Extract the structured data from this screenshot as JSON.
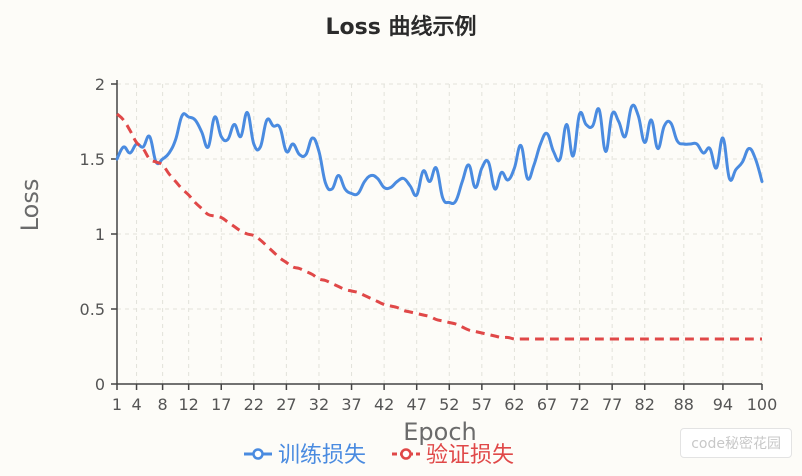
{
  "chart_data": {
    "type": "line",
    "title": "Loss 曲线示例",
    "xlabel": "Epoch",
    "ylabel": "Loss",
    "ylim": [
      0,
      2
    ],
    "xlim": [
      1,
      100
    ],
    "grid": true,
    "legend_position": "bottom",
    "x_tick_labels": [
      "1",
      "4",
      "8",
      "12",
      "17",
      "22",
      "27",
      "32",
      "37",
      "42",
      "47",
      "52",
      "57",
      "62",
      "67",
      "72",
      "77",
      "82",
      "88",
      "94",
      "100"
    ],
    "y_tick_labels": [
      "0",
      "0.5",
      "1",
      "1.5",
      "2"
    ],
    "y_ticks": [
      0,
      0.5,
      1,
      1.5,
      2
    ],
    "series": [
      {
        "name": "训练损失",
        "color": "#4a8be0",
        "style": "solid",
        "x": [
          1,
          2,
          3,
          4,
          5,
          6,
          7,
          8,
          9,
          10,
          11,
          12,
          13,
          14,
          15,
          16,
          17,
          18,
          19,
          20,
          21,
          22,
          23,
          24,
          25,
          26,
          27,
          28,
          29,
          30,
          31,
          32,
          33,
          34,
          35,
          36,
          37,
          38,
          39,
          40,
          41,
          42,
          43,
          44,
          45,
          46,
          47,
          48,
          49,
          50,
          51,
          52,
          53,
          54,
          55,
          56,
          57,
          58,
          59,
          60,
          61,
          62,
          63,
          64,
          65,
          66,
          67,
          68,
          69,
          70,
          71,
          72,
          73,
          74,
          75,
          76,
          77,
          78,
          79,
          80,
          81,
          82,
          83,
          84,
          85,
          86,
          87,
          88,
          89,
          90,
          91,
          92,
          93,
          94,
          95,
          96,
          97,
          98,
          99,
          100
        ],
        "values": [
          1.5,
          1.58,
          1.54,
          1.6,
          1.58,
          1.65,
          1.48,
          1.5,
          1.54,
          1.63,
          1.79,
          1.78,
          1.76,
          1.68,
          1.58,
          1.78,
          1.65,
          1.63,
          1.73,
          1.65,
          1.81,
          1.6,
          1.58,
          1.76,
          1.72,
          1.71,
          1.55,
          1.6,
          1.53,
          1.53,
          1.64,
          1.55,
          1.34,
          1.3,
          1.39,
          1.3,
          1.27,
          1.27,
          1.35,
          1.39,
          1.37,
          1.31,
          1.31,
          1.35,
          1.37,
          1.32,
          1.26,
          1.42,
          1.35,
          1.44,
          1.24,
          1.21,
          1.22,
          1.35,
          1.46,
          1.31,
          1.44,
          1.48,
          1.3,
          1.41,
          1.36,
          1.44,
          1.59,
          1.37,
          1.46,
          1.6,
          1.67,
          1.55,
          1.5,
          1.73,
          1.52,
          1.8,
          1.73,
          1.72,
          1.83,
          1.55,
          1.8,
          1.75,
          1.65,
          1.85,
          1.79,
          1.61,
          1.76,
          1.57,
          1.72,
          1.74,
          1.62,
          1.6,
          1.6,
          1.6,
          1.54,
          1.57,
          1.44,
          1.64,
          1.37,
          1.43,
          1.48,
          1.57,
          1.5,
          1.35
        ]
      },
      {
        "name": "验证损失",
        "color": "#e04848",
        "style": "dashed",
        "x": [
          1,
          2,
          3,
          4,
          5,
          6,
          7,
          8,
          9,
          10,
          11,
          12,
          13,
          14,
          15,
          16,
          17,
          18,
          19,
          20,
          21,
          22,
          23,
          24,
          25,
          26,
          27,
          28,
          29,
          30,
          31,
          32,
          33,
          34,
          35,
          36,
          37,
          38,
          39,
          40,
          41,
          42,
          43,
          44,
          45,
          46,
          47,
          48,
          49,
          50,
          51,
          52,
          53,
          54,
          55,
          56,
          57,
          58,
          59,
          60,
          61,
          62,
          63,
          64,
          65,
          66,
          67,
          68,
          69,
          70,
          71,
          72,
          73,
          74,
          75,
          76,
          77,
          78,
          79,
          80,
          81,
          82,
          83,
          84,
          85,
          86,
          87,
          88,
          89,
          90,
          91,
          92,
          93,
          94,
          95,
          96,
          97,
          98,
          99,
          100
        ],
        "values": [
          1.8,
          1.76,
          1.69,
          1.61,
          1.57,
          1.5,
          1.48,
          1.46,
          1.4,
          1.35,
          1.3,
          1.26,
          1.21,
          1.17,
          1.13,
          1.12,
          1.11,
          1.08,
          1.05,
          1.02,
          1.0,
          0.99,
          0.96,
          0.92,
          0.88,
          0.84,
          0.81,
          0.78,
          0.77,
          0.75,
          0.73,
          0.7,
          0.69,
          0.67,
          0.65,
          0.63,
          0.62,
          0.61,
          0.59,
          0.57,
          0.55,
          0.53,
          0.52,
          0.51,
          0.49,
          0.48,
          0.47,
          0.46,
          0.45,
          0.43,
          0.42,
          0.41,
          0.4,
          0.38,
          0.36,
          0.35,
          0.34,
          0.33,
          0.32,
          0.31,
          0.31,
          0.3,
          0.3,
          0.3,
          0.3,
          0.3,
          0.3,
          0.3,
          0.3,
          0.3,
          0.3,
          0.3,
          0.3,
          0.3,
          0.3,
          0.3,
          0.3,
          0.3,
          0.3,
          0.3,
          0.3,
          0.3,
          0.3,
          0.3,
          0.3,
          0.3,
          0.3,
          0.3,
          0.3,
          0.3,
          0.3,
          0.3,
          0.3,
          0.3,
          0.3,
          0.3,
          0.3,
          0.3,
          0.3,
          0.3
        ]
      }
    ]
  },
  "watermark": "code秘密花园",
  "colors": {
    "axis": "#444444",
    "grid": "#e2e2da",
    "background": "#fdfcf8"
  }
}
